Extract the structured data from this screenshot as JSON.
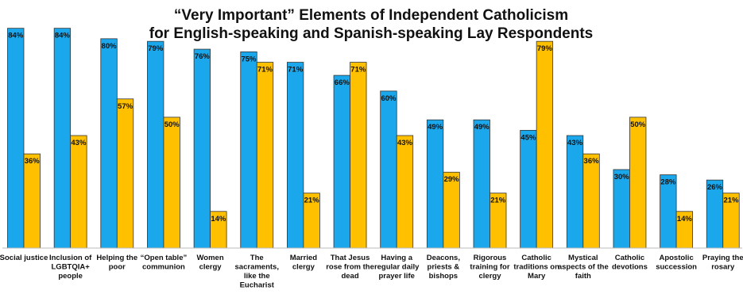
{
  "chart_data": {
    "type": "bar",
    "title": [
      "“Very Important” Elements of Independent Catholicism",
      "for English-speaking and Spanish-speaking Lay Respondents"
    ],
    "categories": [
      [
        "Social justice"
      ],
      [
        "Inclusion of",
        "LGBTQIA+",
        "people"
      ],
      [
        "Helping the",
        "poor"
      ],
      [
        "“Open table”",
        "communion"
      ],
      [
        "Women",
        "clergy"
      ],
      [
        "The",
        "sacraments,",
        "like the",
        "Eucharist"
      ],
      [
        "Married",
        "clergy"
      ],
      [
        "That Jesus",
        "rose from the",
        "dead"
      ],
      [
        "Having a",
        "regular daily",
        "prayer life"
      ],
      [
        "Deacons,",
        "priests &",
        "bishops"
      ],
      [
        "Rigorous",
        "training for",
        "clergy"
      ],
      [
        "Catholic",
        "traditions on",
        "Mary"
      ],
      [
        "Mystical",
        "aspects of the",
        "faith"
      ],
      [
        "Catholic",
        "devotions"
      ],
      [
        "Apostolic",
        "succession"
      ],
      [
        "Praying the",
        "rosary"
      ]
    ],
    "series": [
      {
        "color": "#1AA7EC",
        "values": [
          84,
          84,
          80,
          79,
          76,
          75,
          71,
          66,
          60,
          49,
          49,
          45,
          43,
          30,
          28,
          26
        ]
      },
      {
        "color": "#FFC000",
        "values": [
          36,
          43,
          57,
          50,
          14,
          71,
          21,
          71,
          43,
          29,
          21,
          79,
          36,
          50,
          14,
          21
        ]
      }
    ],
    "value_suffix": "%",
    "ylim": [
      0,
      85
    ],
    "grid": false,
    "legend": "none"
  }
}
